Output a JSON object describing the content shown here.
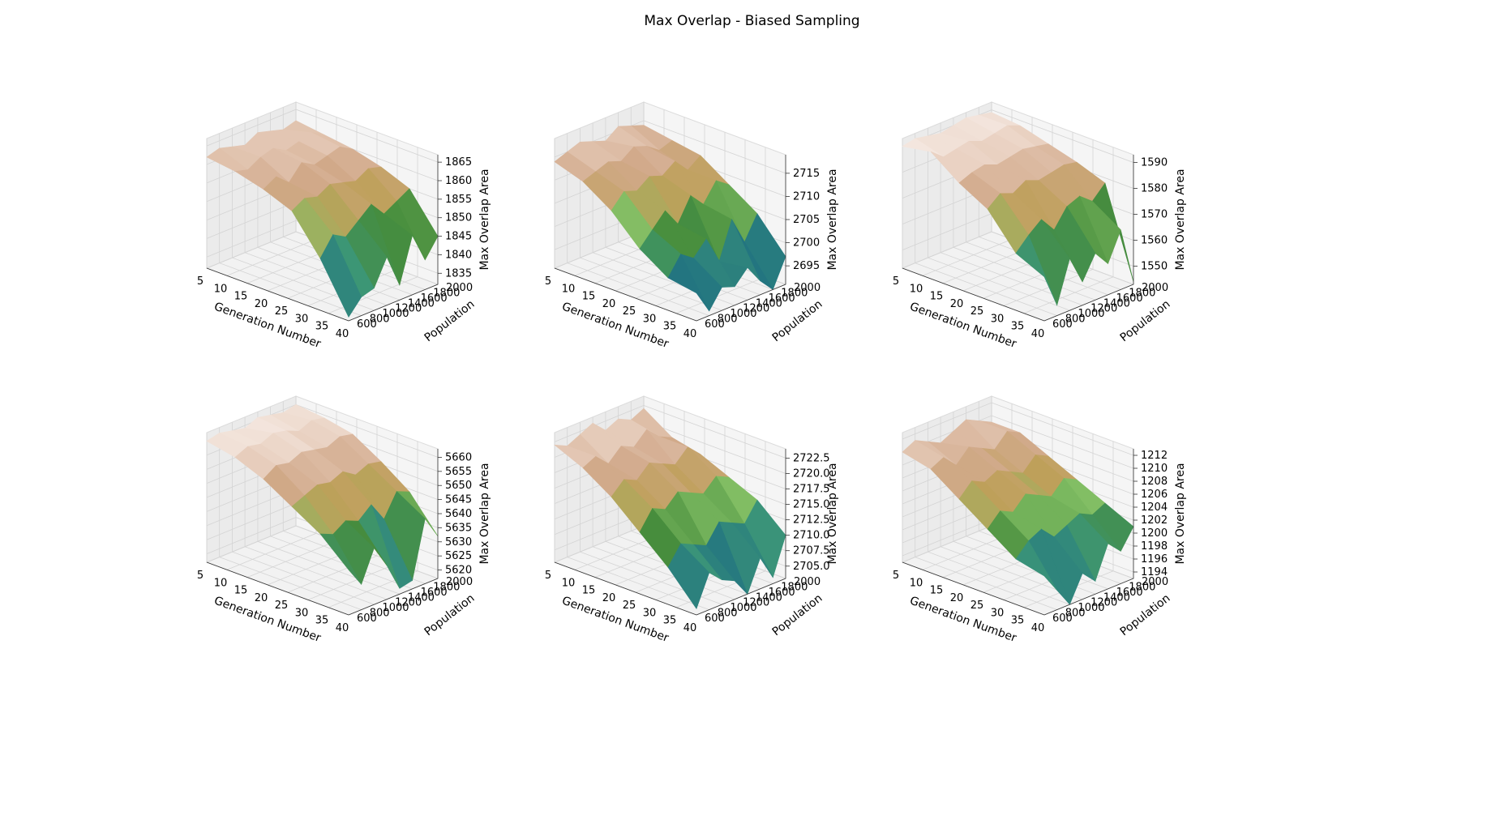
{
  "figure": {
    "title": "Max Overlap - Biased Sampling"
  },
  "chart_data": [
    {
      "type": "surface3d",
      "xlabel": "Generation Number",
      "ylabel": "Population",
      "zlabel": "Max Overlap Area",
      "x_ticks": [
        "5",
        "10",
        "15",
        "20",
        "25",
        "30",
        "35",
        "40"
      ],
      "y_ticks": [
        "600",
        "800",
        "1000",
        "1200",
        "1400",
        "1600",
        "1800",
        "2000"
      ],
      "z_ticks": [
        "1835",
        "1840",
        "1845",
        "1850",
        "1855",
        "1860",
        "1865"
      ],
      "xlim": [
        5,
        40
      ],
      "ylim": [
        600,
        2000
      ],
      "zlim": [
        1832,
        1867
      ],
      "colormap": "gist_earth",
      "z": [
        [
          1862,
          1863,
          1862,
          1861,
          1863,
          1862,
          1861,
          1862
        ],
        [
          1861,
          1860,
          1862,
          1863,
          1861,
          1862,
          1863,
          1861
        ],
        [
          1859,
          1861,
          1858,
          1862,
          1860,
          1861,
          1862,
          1860
        ],
        [
          1856,
          1858,
          1857,
          1859,
          1858,
          1857,
          1859,
          1858
        ],
        [
          1846,
          1851,
          1849,
          1852,
          1855,
          1851,
          1853,
          1855
        ],
        [
          1833,
          1837,
          1838,
          1845,
          1836,
          1848,
          1840,
          1845
        ]
      ]
    },
    {
      "type": "surface3d",
      "xlabel": "Generation Number",
      "ylabel": "Population",
      "zlabel": "Max Overlap Area",
      "x_ticks": [
        "5",
        "10",
        "15",
        "20",
        "25",
        "30",
        "35",
        "40"
      ],
      "y_ticks": [
        "600",
        "800",
        "1000",
        "1200",
        "1400",
        "1600",
        "1800",
        "2000"
      ],
      "z_ticks": [
        "2695",
        "2700",
        "2705",
        "2710",
        "2715"
      ],
      "xlim": [
        5,
        40
      ],
      "ylim": [
        600,
        2000
      ],
      "zlim": [
        2691,
        2719
      ],
      "colormap": "gist_earth",
      "z": [
        [
          2714,
          2715,
          2716,
          2715,
          2714,
          2716,
          2715,
          2714
        ],
        [
          2712,
          2713,
          2714,
          2713,
          2715,
          2714,
          2712,
          2713
        ],
        [
          2708,
          2711,
          2710,
          2712,
          2711,
          2713,
          2710,
          2712
        ],
        [
          2702,
          2705,
          2708,
          2704,
          2709,
          2706,
          2710,
          2708
        ],
        [
          2698,
          2702,
          2700,
          2703,
          2697,
          2705,
          2699,
          2704
        ],
        [
          2697,
          2692,
          2696,
          2695,
          2698,
          2694,
          2691,
          2697
        ]
      ]
    },
    {
      "type": "surface3d",
      "xlabel": "Generation Number",
      "ylabel": "Population",
      "zlabel": "Max Overlap Area",
      "x_ticks": [
        "5",
        "10",
        "15",
        "20",
        "25",
        "30",
        "35",
        "40"
      ],
      "y_ticks": [
        "600",
        "800",
        "1000",
        "1200",
        "1400",
        "1600",
        "1800",
        "2000"
      ],
      "z_ticks": [
        "1550",
        "1560",
        "1570",
        "1580",
        "1590"
      ],
      "xlim": [
        5,
        40
      ],
      "ylim": [
        600,
        2000
      ],
      "zlim": [
        1543,
        1593
      ],
      "colormap": "gist_earth",
      "z": [
        [
          1590,
          1591,
          1590,
          1589,
          1590,
          1591,
          1590,
          1589
        ],
        [
          1592,
          1588,
          1589,
          1590,
          1588,
          1589,
          1590,
          1588
        ],
        [
          1584,
          1586,
          1587,
          1585,
          1586,
          1587,
          1586,
          1585
        ],
        [
          1578,
          1582,
          1580,
          1583,
          1581,
          1582,
          1583,
          1582
        ],
        [
          1565,
          1570,
          1574,
          1568,
          1575,
          1577,
          1573,
          1578
        ],
        [
          1560,
          1547,
          1563,
          1552,
          1561,
          1555,
          1566,
          1544
        ]
      ]
    },
    {
      "type": "surface3d",
      "xlabel": "Generation Number",
      "ylabel": "Population",
      "zlabel": "Max Overlap Area",
      "x_ticks": [
        "5",
        "10",
        "15",
        "20",
        "25",
        "30",
        "35",
        "40"
      ],
      "y_ticks": [
        "600",
        "800",
        "1000",
        "1200",
        "1400",
        "1600",
        "1800",
        "2000"
      ],
      "z_ticks": [
        "5620",
        "5625",
        "5630",
        "5635",
        "5640",
        "5645",
        "5650",
        "5655",
        "5660"
      ],
      "xlim": [
        5,
        40
      ],
      "ylim": [
        600,
        2000
      ],
      "zlim": [
        5617,
        5663
      ],
      "colormap": "gist_earth",
      "z": [
        [
          5660,
          5661,
          5660,
          5659,
          5661,
          5660,
          5659,
          5660
        ],
        [
          5658,
          5660,
          5659,
          5661,
          5660,
          5658,
          5660,
          5659
        ],
        [
          5654,
          5657,
          5656,
          5658,
          5657,
          5656,
          5658,
          5657
        ],
        [
          5648,
          5650,
          5652,
          5651,
          5653,
          5650,
          5652,
          5651
        ],
        [
          5642,
          5640,
          5643,
          5641,
          5645,
          5638,
          5646,
          5644
        ],
        [
          5633,
          5626,
          5637,
          5629,
          5619,
          5620,
          5640,
          5632
        ]
      ]
    },
    {
      "type": "surface3d",
      "xlabel": "Generation Number",
      "ylabel": "Population",
      "zlabel": "Max Overlap Area",
      "x_ticks": [
        "5",
        "10",
        "15",
        "20",
        "25",
        "30",
        "35",
        "40"
      ],
      "y_ticks": [
        "600",
        "800",
        "1000",
        "1200",
        "1400",
        "1600",
        "1800",
        "2000"
      ],
      "z_ticks": [
        "2705.0",
        "2707.5",
        "2710.0",
        "2712.5",
        "2715.0",
        "2717.5",
        "2720.0",
        "2722.5"
      ],
      "xlim": [
        5,
        40
      ],
      "ylim": [
        600,
        2000
      ],
      "zlim": [
        2703,
        2724
      ],
      "colormap": "gist_earth",
      "z": [
        [
          2722,
          2721,
          2722,
          2723,
          2721,
          2722,
          2721,
          2722
        ],
        [
          2720,
          2721,
          2719,
          2721,
          2720,
          2722,
          2720,
          2719
        ],
        [
          2717,
          2719,
          2718,
          2720,
          2719,
          2718,
          2720,
          2718
        ],
        [
          2713,
          2716,
          2715,
          2717,
          2716,
          2715,
          2717,
          2716
        ],
        [
          2709,
          2712,
          2711,
          2710,
          2713,
          2712,
          2711,
          2714
        ],
        [
          2704,
          2709,
          2707,
          2706,
          2703,
          2708,
          2704,
          2710
        ]
      ]
    },
    {
      "type": "surface3d",
      "xlabel": "Generation Number",
      "ylabel": "Population",
      "zlabel": "Max Overlap Area",
      "x_ticks": [
        "5",
        "10",
        "15",
        "20",
        "25",
        "30",
        "35",
        "40"
      ],
      "y_ticks": [
        "600",
        "800",
        "1000",
        "1200",
        "1400",
        "1600",
        "1800",
        "2000"
      ],
      "z_ticks": [
        "1194",
        "1196",
        "1198",
        "1200",
        "1202",
        "1204",
        "1206",
        "1208",
        "1210",
        "1212"
      ],
      "xlim": [
        5,
        40
      ],
      "ylim": [
        600,
        2000
      ],
      "zlim": [
        1193,
        1213
      ],
      "colormap": "gist_earth",
      "z": [
        [
          1210,
          1211,
          1210,
          1209,
          1210,
          1211,
          1210,
          1209
        ],
        [
          1209,
          1210,
          1208,
          1210,
          1209,
          1208,
          1210,
          1209
        ],
        [
          1206,
          1208,
          1207,
          1208,
          1207,
          1206,
          1208,
          1207
        ],
        [
          1203,
          1205,
          1204,
          1206,
          1205,
          1204,
          1206,
          1205
        ],
        [
          1200,
          1202,
          1203,
          1201,
          1202,
          1203,
          1202,
          1203
        ],
        [
          1199,
          1196,
          1193,
          1197,
          1195,
          1200,
          1198,
          1201
        ]
      ]
    }
  ]
}
